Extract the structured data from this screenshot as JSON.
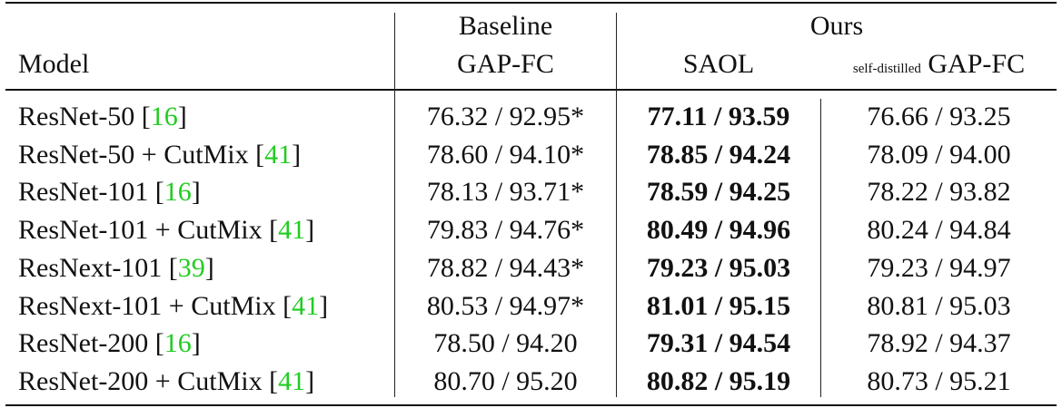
{
  "table": {
    "header": {
      "model": "Model",
      "baseline_group": "Baseline",
      "baseline_col": "GAP-FC",
      "ours_group": "Ours",
      "saol_col": "SAOL",
      "sd_prefix": "self-distilled",
      "sd_col": "GAP-FC"
    },
    "rows": [
      {
        "model": "ResNet-50 [",
        "cite": "16",
        "close": "]",
        "baseline": "76.32 / 92.95*",
        "saol": "77.11 / 93.59",
        "sd": "76.66 / 93.25"
      },
      {
        "model": "ResNet-50 + CutMix [",
        "cite": "41",
        "close": "]",
        "baseline": "78.60 / 94.10*",
        "saol": "78.85 / 94.24",
        "sd": "78.09 / 94.00"
      },
      {
        "model": "ResNet-101 [",
        "cite": "16",
        "close": "]",
        "baseline": "78.13 / 93.71*",
        "saol": "78.59 / 94.25",
        "sd": "78.22 / 93.82"
      },
      {
        "model": "ResNet-101 + CutMix [",
        "cite": "41",
        "close": "]",
        "baseline": "79.83 / 94.76*",
        "saol": "80.49 / 94.96",
        "sd": "80.24 / 94.84"
      },
      {
        "model": "ResNext-101 [",
        "cite": "39",
        "close": "]",
        "baseline": "78.82 / 94.43*",
        "saol": "79.23 / 95.03",
        "sd": "79.23 / 94.97"
      },
      {
        "model": "ResNext-101 + CutMix [",
        "cite": "41",
        "close": "]",
        "baseline": "80.53 / 94.97*",
        "saol": "81.01 / 95.15",
        "sd": "80.81 / 95.03"
      },
      {
        "model": "ResNet-200 [",
        "cite": "16",
        "close": "]",
        "baseline": "78.50 / 94.20",
        "saol": "79.31 / 94.54",
        "sd": "78.92 / 94.37"
      },
      {
        "model": "ResNet-200 + CutMix [",
        "cite": "41",
        "close": "]",
        "baseline": "80.70 / 95.20",
        "saol": "80.82 / 95.19",
        "sd": "80.73 / 95.21"
      }
    ]
  },
  "colors": {
    "text": "#111111",
    "citation": "#22cc22",
    "rule": "#111111"
  }
}
